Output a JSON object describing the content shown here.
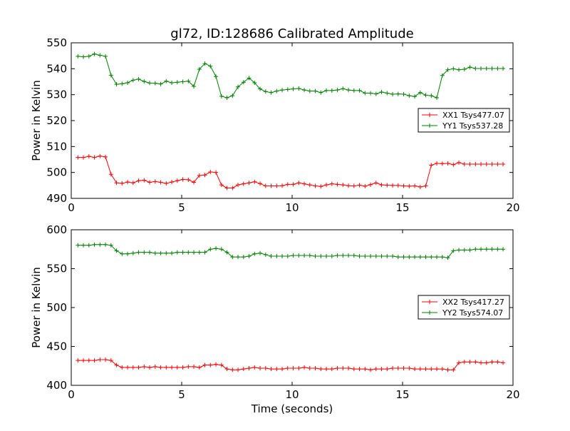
{
  "figure_title": "gl72, ID:128686 Calibrated Amplitude",
  "chart_data": [
    {
      "type": "line",
      "title": "gl72, ID:128686 Calibrated Amplitude",
      "xlabel": "",
      "ylabel": "Power in Kelvin",
      "xlim": [
        0,
        20
      ],
      "ylim": [
        490,
        550
      ],
      "xticks": [
        "0",
        "5",
        "10",
        "15",
        "20"
      ],
      "yticks": [
        "490",
        "500",
        "510",
        "520",
        "530",
        "540",
        "550"
      ],
      "grid": false,
      "legend": "center-right",
      "x": [
        0.3,
        0.55,
        0.8,
        1.05,
        1.3,
        1.55,
        1.8,
        2.05,
        2.3,
        2.55,
        2.8,
        3.05,
        3.3,
        3.55,
        3.8,
        4.05,
        4.3,
        4.55,
        4.8,
        5.05,
        5.3,
        5.55,
        5.8,
        6.05,
        6.3,
        6.55,
        6.8,
        7.05,
        7.3,
        7.55,
        7.8,
        8.05,
        8.3,
        8.55,
        8.8,
        9.05,
        9.3,
        9.55,
        9.8,
        10.05,
        10.3,
        10.55,
        10.8,
        11.05,
        11.3,
        11.55,
        11.8,
        12.05,
        12.3,
        12.55,
        12.8,
        13.05,
        13.3,
        13.55,
        13.8,
        14.05,
        14.3,
        14.55,
        14.8,
        15.05,
        15.3,
        15.55,
        15.8,
        16.05,
        16.3,
        16.55,
        16.8,
        17.05,
        17.3,
        17.55,
        17.8,
        18.05,
        18.3,
        18.55,
        18.8,
        19.05,
        19.3,
        19.55
      ],
      "series": [
        {
          "name": "XX1 Tsys477.07",
          "color": "#ff0000",
          "values": [
            505.8,
            505.8,
            506.2,
            505.8,
            506.3,
            506.0,
            499.3,
            496.0,
            495.8,
            496.3,
            496.0,
            496.8,
            497.0,
            496.2,
            496.5,
            496.2,
            495.8,
            496.3,
            496.8,
            497.3,
            497.2,
            496.2,
            498.8,
            499.0,
            500.2,
            500.0,
            495.2,
            494.0,
            494.0,
            495.2,
            495.6,
            496.0,
            496.4,
            495.7,
            494.8,
            494.8,
            494.8,
            494.9,
            495.4,
            495.4,
            496.0,
            495.6,
            495.2,
            494.8,
            494.6,
            495.2,
            495.6,
            495.4,
            495.2,
            494.9,
            494.8,
            495.1,
            494.7,
            495.3,
            496.0,
            495.2,
            495.1,
            495.0,
            495.0,
            494.8,
            494.7,
            494.8,
            494.4,
            494.8,
            502.8,
            503.5,
            503.4,
            503.5,
            503.0,
            503.8,
            503.2,
            503.2,
            503.2,
            503.2,
            503.2,
            503.2,
            503.2,
            503.2
          ]
        },
        {
          "name": "YY1 Tsys537.28",
          "color": "#008000",
          "values": [
            544.8,
            544.6,
            544.8,
            545.7,
            545.2,
            544.8,
            537.5,
            534.0,
            534.2,
            534.6,
            535.6,
            536.0,
            535.1,
            534.5,
            534.4,
            534.1,
            535.2,
            534.6,
            534.8,
            535.0,
            535.2,
            533.2,
            539.8,
            542.0,
            541.0,
            537.0,
            529.4,
            528.8,
            529.6,
            533.0,
            534.8,
            536.4,
            534.6,
            532.2,
            531.2,
            530.8,
            531.4,
            531.8,
            532.0,
            532.2,
            532.4,
            531.8,
            531.4,
            531.4,
            530.8,
            531.6,
            531.6,
            531.8,
            532.3,
            531.8,
            531.6,
            531.6,
            530.6,
            530.6,
            530.3,
            531.0,
            530.6,
            530.2,
            530.3,
            530.2,
            529.6,
            529.3,
            530.8,
            529.8,
            529.6,
            528.8,
            537.4,
            539.6,
            540.0,
            539.6,
            539.8,
            540.6,
            540.1,
            540.1,
            540.1,
            540.1,
            540.1,
            540.1
          ]
        }
      ]
    },
    {
      "type": "line",
      "title": "",
      "xlabel": "Time (seconds)",
      "ylabel": "Power in Kelvin",
      "xlim": [
        0,
        20
      ],
      "ylim": [
        400,
        600
      ],
      "xticks": [
        "0",
        "5",
        "10",
        "15",
        "20"
      ],
      "yticks": [
        "400",
        "450",
        "500",
        "550",
        "600"
      ],
      "grid": false,
      "legend": "center-right",
      "x": [
        0.3,
        0.55,
        0.8,
        1.05,
        1.3,
        1.55,
        1.8,
        2.05,
        2.3,
        2.55,
        2.8,
        3.05,
        3.3,
        3.55,
        3.8,
        4.05,
        4.3,
        4.55,
        4.8,
        5.05,
        5.3,
        5.55,
        5.8,
        6.05,
        6.3,
        6.55,
        6.8,
        7.05,
        7.3,
        7.55,
        7.8,
        8.05,
        8.3,
        8.55,
        8.8,
        9.05,
        9.3,
        9.55,
        9.8,
        10.05,
        10.3,
        10.55,
        10.8,
        11.05,
        11.3,
        11.55,
        11.8,
        12.05,
        12.3,
        12.55,
        12.8,
        13.05,
        13.3,
        13.55,
        13.8,
        14.05,
        14.3,
        14.55,
        14.8,
        15.05,
        15.3,
        15.55,
        15.8,
        16.05,
        16.3,
        16.55,
        16.8,
        17.05,
        17.3,
        17.55,
        17.8,
        18.05,
        18.3,
        18.55,
        18.8,
        19.05,
        19.3,
        19.55
      ],
      "series": [
        {
          "name": "XX2 Tsys417.27",
          "color": "#ff0000",
          "values": [
            432,
            432,
            432,
            432,
            433,
            433,
            432,
            426,
            423,
            423,
            423,
            423,
            424,
            423,
            424,
            423,
            423,
            423,
            423,
            423,
            424,
            424,
            423,
            426,
            426,
            427,
            426,
            421,
            420,
            420,
            421,
            422,
            423,
            422,
            422,
            421,
            421,
            421,
            422,
            422,
            422,
            423,
            422,
            422,
            421,
            421,
            421,
            422,
            422,
            422,
            421,
            421,
            421,
            420,
            421,
            421,
            421,
            422,
            422,
            422,
            422,
            421,
            421,
            421,
            421,
            421,
            421,
            420,
            420,
            429,
            430,
            430,
            430,
            429,
            429,
            430,
            430,
            429
          ]
        },
        {
          "name": "YY2 Tsys574.07",
          "color": "#008000",
          "values": [
            580,
            580,
            580,
            581,
            581,
            581,
            580,
            573,
            569,
            569,
            570,
            571,
            571,
            571,
            570,
            570,
            570,
            570,
            571,
            571,
            571,
            571,
            571,
            571,
            575,
            576,
            575,
            571,
            565,
            565,
            565,
            566,
            569,
            570,
            568,
            566,
            566,
            566,
            566,
            567,
            567,
            567,
            567,
            566,
            566,
            566,
            566,
            567,
            567,
            567,
            567,
            566,
            566,
            566,
            566,
            566,
            566,
            566,
            565,
            565,
            565,
            565,
            565,
            565,
            565,
            565,
            565,
            564,
            573,
            574,
            574,
            574,
            575,
            575,
            575,
            575,
            575,
            575
          ]
        }
      ]
    }
  ]
}
